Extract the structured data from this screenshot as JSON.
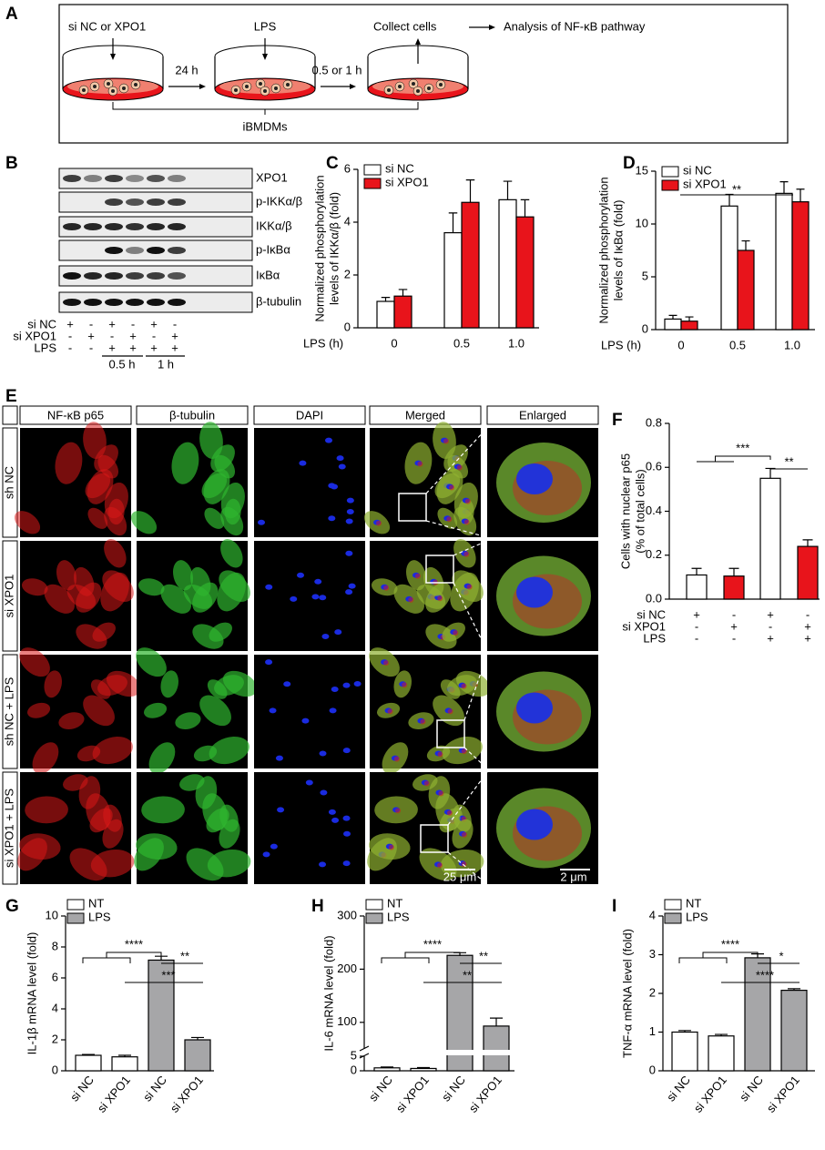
{
  "panel_a": {
    "label": "A",
    "step1": "si NC or XPO1",
    "step2": "LPS",
    "step3": "Collect cells",
    "step4": "Analysis of NF-κB pathway",
    "interval1": "24 h",
    "interval2": "0.5 or 1 h",
    "cells": "iBMDMs"
  },
  "panel_b": {
    "label": "B",
    "proteins": [
      "XPO1",
      "p-IKKα/β",
      "IKKα/β",
      "p-IκBα",
      "IκBα",
      "β-tubulin"
    ],
    "conditions": [
      {
        "name": "si NC",
        "signs": [
          "+",
          "-",
          "+",
          "-",
          "+",
          "-"
        ]
      },
      {
        "name": "si XPO1",
        "signs": [
          "-",
          "+",
          "-",
          "+",
          "-",
          "+"
        ]
      },
      {
        "name": "LPS",
        "signs": [
          "-",
          "-",
          "+",
          "+",
          "+",
          "+"
        ]
      }
    ],
    "timepoints": [
      "0.5 h",
      "1 h"
    ]
  },
  "panel_e": {
    "label": "E",
    "columns": [
      "NF-κB p65",
      "β-tubulin",
      "DAPI",
      "Merged",
      "Enlarged"
    ],
    "rows": [
      "sh NC",
      "si XPO1",
      "sh NC + LPS",
      "si XPO1 + LPS"
    ],
    "scale_bars": [
      "25 μm",
      "2 μm"
    ]
  },
  "chart_data": [
    {
      "panel": "C",
      "type": "bar",
      "ylabel": [
        "Normalized phosphorylation",
        "levels of IKKα/β (fold)"
      ],
      "xlabel": "LPS (h)",
      "categories": [
        "0",
        "0.5",
        "1.0"
      ],
      "series": [
        {
          "name": "si NC",
          "color": "#ffffff",
          "values": [
            1.0,
            3.6,
            4.85
          ],
          "errors": [
            0.15,
            0.75,
            0.7
          ]
        },
        {
          "name": "si XPO1",
          "color": "#e8141b",
          "values": [
            1.2,
            4.75,
            4.2
          ],
          "errors": [
            0.25,
            0.85,
            0.65
          ]
        }
      ],
      "ylim": [
        0,
        6
      ],
      "yticks": [
        0,
        2,
        4,
        6
      ]
    },
    {
      "panel": "D",
      "type": "bar",
      "ylabel": [
        "Normalized phosphorylation",
        "levels of IκBα (fold)"
      ],
      "xlabel": "LPS (h)",
      "categories": [
        "0",
        "0.5",
        "1.0"
      ],
      "series": [
        {
          "name": "si NC",
          "color": "#ffffff",
          "values": [
            1.0,
            11.7,
            12.9
          ],
          "errors": [
            0.35,
            1.1,
            1.1
          ]
        },
        {
          "name": "si XPO1",
          "color": "#e8141b",
          "values": [
            0.8,
            7.5,
            12.1
          ],
          "errors": [
            0.4,
            0.9,
            1.2
          ]
        }
      ],
      "ylim": [
        0,
        15
      ],
      "yticks": [
        0,
        5,
        10,
        15
      ],
      "annotations": [
        "**"
      ]
    },
    {
      "panel": "F",
      "type": "bar",
      "ylabel": [
        "Cells with nuclear p65",
        "(% of total cells)"
      ],
      "values": [
        0.11,
        0.105,
        0.55,
        0.24
      ],
      "errors": [
        0.03,
        0.035,
        0.045,
        0.03
      ],
      "colors": [
        "#ffffff",
        "#e8141b",
        "#ffffff",
        "#e8141b"
      ],
      "conditions": [
        {
          "name": "si NC",
          "signs": [
            "+",
            "-",
            "+",
            "-"
          ]
        },
        {
          "name": "si XPO1",
          "signs": [
            "-",
            "+",
            "-",
            "+"
          ]
        },
        {
          "name": "LPS",
          "signs": [
            "-",
            "-",
            "+",
            "+"
          ]
        }
      ],
      "ylim": [
        0,
        0.8
      ],
      "yticks": [
        {
          "value": 0,
          "label": "0.0"
        },
        0.2,
        0.4,
        0.6,
        0.8
      ],
      "annotations": [
        "***",
        "**"
      ]
    },
    {
      "panel": "G",
      "type": "bar",
      "ylabel": [
        "IL-1β  mRNA level (fold)"
      ],
      "categories": [
        "si NC",
        "si XPO1",
        "si NC",
        "si XPO1"
      ],
      "series": [
        {
          "name": "NT",
          "color": "#ffffff",
          "values": [
            1.0,
            0.9,
            null,
            null
          ],
          "errors": [
            0.05,
            0.1,
            null,
            null
          ]
        },
        {
          "name": "LPS",
          "color": "#a6a6a8",
          "values": [
            null,
            null,
            7.15,
            2.0
          ],
          "errors": [
            null,
            null,
            0.25,
            0.15
          ]
        }
      ],
      "ylim": [
        0,
        10
      ],
      "yticks": [
        0,
        2,
        4,
        6,
        8,
        10
      ],
      "annotations": [
        "****",
        "**",
        "***"
      ]
    },
    {
      "panel": "H",
      "type": "bar",
      "ylabel": [
        "IL-6 mRNA level (fold)"
      ],
      "categories": [
        "si NC",
        "si XPO1",
        "si NC",
        "si XPO1"
      ],
      "series": [
        {
          "name": "NT",
          "color": "#ffffff",
          "values": [
            1.0,
            0.8,
            null,
            null
          ],
          "errors": [
            0.3,
            0.3,
            null,
            null
          ]
        },
        {
          "name": "LPS",
          "color": "#a6a6a8",
          "values": [
            null,
            null,
            226,
            93
          ],
          "errors": [
            null,
            null,
            5,
            15
          ]
        }
      ],
      "ylim": [
        0,
        300
      ],
      "ybreak": [
        5,
        50
      ],
      "yticks": [
        0,
        5,
        100,
        200,
        300
      ],
      "annotations": [
        "****",
        "**",
        "**"
      ]
    },
    {
      "panel": "I",
      "type": "bar",
      "ylabel": [
        "TNF-α mRNA level (fold)"
      ],
      "categories": [
        "si NC",
        "si XPO1",
        "si NC",
        "si XPO1"
      ],
      "series": [
        {
          "name": "NT",
          "color": "#ffffff",
          "values": [
            1.0,
            0.9,
            null,
            null
          ],
          "errors": [
            0.04,
            0.04,
            null,
            null
          ]
        },
        {
          "name": "LPS",
          "color": "#a6a6a8",
          "values": [
            null,
            null,
            2.92,
            2.08
          ],
          "errors": [
            null,
            null,
            0.1,
            0.04
          ]
        }
      ],
      "ylim": [
        0,
        4
      ],
      "yticks": [
        0,
        1,
        2,
        3,
        4
      ],
      "annotations": [
        "****",
        "*",
        "****"
      ]
    }
  ]
}
